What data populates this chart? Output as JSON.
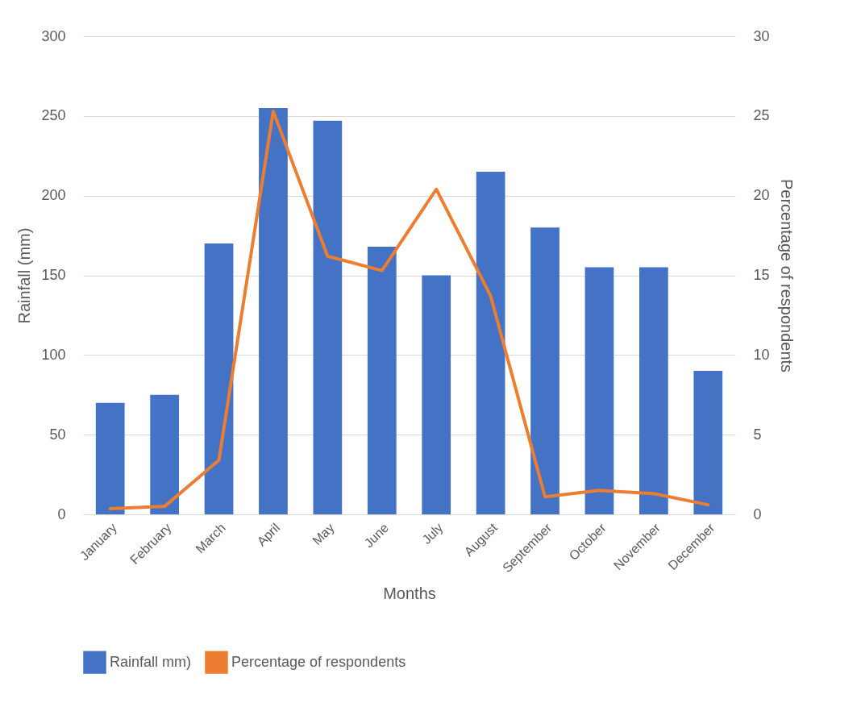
{
  "chart_data": {
    "type": "bar",
    "xlabel": "Months",
    "ylabel": "Rainfall (mm)",
    "y2label": "Percentage of respondents",
    "categories": [
      "January",
      "February",
      "March",
      "April",
      "May",
      "June",
      "July",
      "August",
      "September",
      "October",
      "November",
      "December"
    ],
    "series": [
      {
        "name": "Rainfall mm)",
        "color": "#4472c4",
        "values": [
          70,
          75,
          170,
          255,
          247,
          168,
          150,
          215,
          180,
          155,
          155,
          90
        ]
      },
      {
        "name": "Percentage of respondents",
        "type": "line",
        "axis": "y2",
        "color": "#ed7d31",
        "values": [
          0.35,
          0.5,
          3.4,
          25.3,
          16.2,
          15.3,
          20.4,
          13.7,
          1.1,
          1.5,
          1.3,
          0.6
        ]
      }
    ],
    "ylim": [
      0,
      300
    ],
    "yticks": [
      0,
      50,
      100,
      150,
      200,
      250,
      300
    ],
    "y2lim": [
      0,
      30
    ],
    "y2ticks": [
      0,
      5,
      10,
      15,
      20,
      25,
      30
    ],
    "grid": "y",
    "legend": "bottom",
    "marker": "none",
    "line_style": "solid"
  }
}
